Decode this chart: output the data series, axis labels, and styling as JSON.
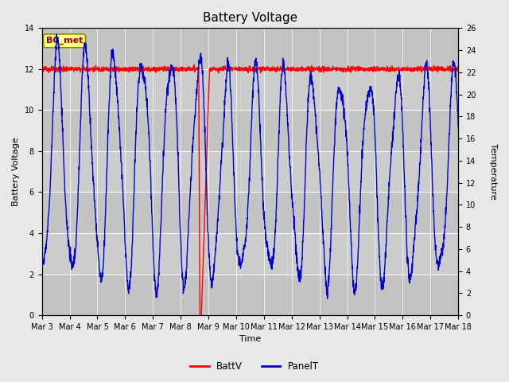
{
  "title": "Battery Voltage",
  "xlabel": "Time",
  "ylabel_left": "Battery Voltage",
  "ylabel_right": "Temperature",
  "ylim_left": [
    0,
    14
  ],
  "ylim_right": [
    0,
    26
  ],
  "yticks_left": [
    0,
    2,
    4,
    6,
    8,
    10,
    12,
    14
  ],
  "yticks_right": [
    0,
    2,
    4,
    6,
    8,
    10,
    12,
    14,
    16,
    18,
    20,
    22,
    24,
    26
  ],
  "xtick_labels": [
    "Mar 3",
    "Mar 4",
    "Mar 5",
    "Mar 6",
    "Mar 7",
    "Mar 8",
    "Mar 9",
    "Mar 10",
    "Mar 11",
    "Mar 12",
    "Mar 13",
    "Mar 14",
    "Mar 15",
    "Mar 16",
    "Mar 17",
    "Mar 18"
  ],
  "fig_bg_color": "#e8e8e8",
  "plot_bg_color": "#cccccc",
  "band_color_light": "#d8d8d8",
  "band_color_dark": "#c8c8c8",
  "line_batt_color": "#ff0000",
  "line_panel_color": "#0000cc",
  "legend_labels": [
    "BattV",
    "PanelT"
  ],
  "bc_met_label": "BC_met",
  "bc_met_bg": "#ffff88",
  "bc_met_border": "#888800",
  "bc_met_text_color": "#990000",
  "title_fontsize": 11,
  "axis_label_fontsize": 8,
  "tick_fontsize": 7
}
